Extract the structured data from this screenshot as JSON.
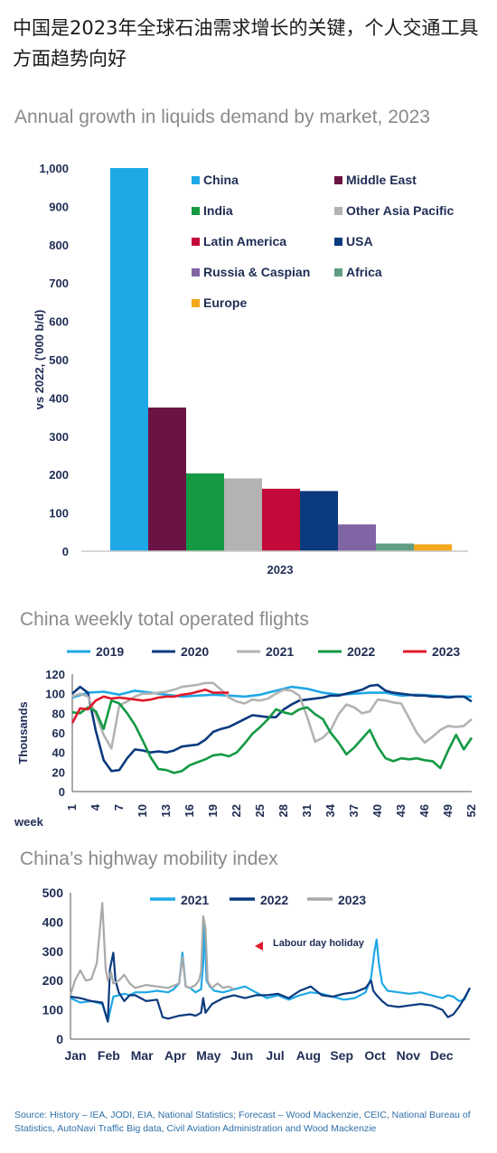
{
  "headline": "中国是2023年全球石油需求增长的关键，个人交通工具方面趋势向好",
  "source": "Source: History – IEA, JODI, EIA, National Statistics; Forecast – Wood Mackenzie,  CEIC, National Bureau of Statistics, AutoNavi Traffic Big data, Civil Aviation Administration and Wood Mackenzie",
  "chart_data": [
    {
      "type": "bar",
      "title": "Annual growth in liquids demand by market, 2023",
      "ylabel": "vs 2022, ('000 b/d)",
      "xlabel": "2023",
      "ylim": [
        0,
        1000
      ],
      "yticks": [
        0,
        100,
        200,
        300,
        400,
        500,
        600,
        700,
        800,
        900,
        1000
      ],
      "legend": "top-right, two columns",
      "series": [
        {
          "name": "China",
          "value": 1000,
          "color": "#1fa8e6"
        },
        {
          "name": "Middle East",
          "value": 375,
          "color": "#6b1444"
        },
        {
          "name": "India",
          "value": 203,
          "color": "#139a43"
        },
        {
          "name": "Other Asia Pacific",
          "value": 190,
          "color": "#b3b3b3"
        },
        {
          "name": "Latin America",
          "value": 163,
          "color": "#c4093a"
        },
        {
          "name": "USA",
          "value": 157,
          "color": "#0b3a7e"
        },
        {
          "name": "Russia & Caspian",
          "value": 70,
          "color": "#7f65a3"
        },
        {
          "name": "Africa",
          "value": 20,
          "color": "#5f9e83"
        },
        {
          "name": "Europe",
          "value": 18,
          "color": "#f5a81c"
        }
      ]
    },
    {
      "type": "line",
      "title": "China weekly total operated flights",
      "ylabel": "Thousands",
      "xlabel": "week",
      "ylim": [
        0,
        120
      ],
      "xlim": [
        1,
        52
      ],
      "yticks": [
        0,
        20,
        40,
        60,
        80,
        100,
        120
      ],
      "xticks": [
        1,
        4,
        7,
        10,
        13,
        16,
        19,
        22,
        25,
        28,
        31,
        34,
        37,
        40,
        43,
        46,
        49,
        52
      ],
      "legend": "top",
      "series": [
        {
          "name": "2019",
          "color": "#1fa8e6",
          "x": [
            1,
            3,
            5,
            7,
            9,
            11,
            13,
            15,
            17,
            19,
            21,
            23,
            25,
            27,
            29,
            31,
            33,
            35,
            37,
            39,
            41,
            43,
            45,
            47,
            49,
            51,
            52
          ],
          "y": [
            96,
            101,
            102,
            99,
            103,
            101,
            99,
            97,
            98,
            99,
            98,
            97,
            99,
            103,
            107,
            105,
            101,
            99,
            100,
            101,
            101,
            98,
            99,
            98,
            97,
            97,
            97
          ]
        },
        {
          "name": "2020",
          "color": "#0b3a7e",
          "x": [
            1,
            2,
            3,
            4,
            5,
            6,
            7,
            8,
            9,
            10,
            11,
            12,
            13,
            14,
            15,
            16,
            17,
            18,
            19,
            20,
            21,
            22,
            23,
            24,
            25,
            26,
            27,
            28,
            29,
            30,
            31,
            32,
            33,
            34,
            35,
            36,
            37,
            38,
            39,
            40,
            41,
            42,
            43,
            44,
            45,
            46,
            47,
            48,
            49,
            50,
            51,
            52
          ],
          "y": [
            100,
            107,
            101,
            62,
            32,
            21,
            22,
            34,
            43,
            42,
            40,
            41,
            40,
            42,
            46,
            47,
            48,
            53,
            61,
            64,
            66,
            70,
            74,
            78,
            77,
            76,
            76,
            84,
            89,
            93,
            94,
            95,
            96,
            98,
            98,
            100,
            102,
            104,
            108,
            109,
            103,
            101,
            100,
            99,
            98,
            98,
            97,
            97,
            96,
            97,
            97,
            92
          ]
        },
        {
          "name": "2021",
          "color": "#b3b3b3",
          "x": [
            1,
            2,
            3,
            4,
            5,
            6,
            7,
            8,
            9,
            10,
            11,
            12,
            13,
            14,
            15,
            16,
            17,
            18,
            19,
            20,
            21,
            22,
            23,
            24,
            25,
            26,
            27,
            28,
            29,
            30,
            31,
            32,
            33,
            34,
            35,
            36,
            37,
            38,
            39,
            40,
            41,
            42,
            43,
            44,
            45,
            46,
            47,
            48,
            49,
            50,
            51,
            52
          ],
          "y": [
            97,
            100,
            97,
            79,
            58,
            44,
            88,
            92,
            97,
            100,
            100,
            101,
            102,
            104,
            107,
            108,
            109,
            111,
            111,
            104,
            96,
            92,
            90,
            94,
            93,
            95,
            100,
            104,
            103,
            98,
            76,
            51,
            55,
            63,
            79,
            89,
            86,
            80,
            82,
            94,
            93,
            91,
            90,
            75,
            60,
            50,
            56,
            63,
            67,
            66,
            67,
            74
          ]
        },
        {
          "name": "2022",
          "color": "#139a43",
          "x": [
            1,
            2,
            3,
            4,
            5,
            6,
            7,
            8,
            9,
            10,
            11,
            12,
            13,
            14,
            15,
            16,
            17,
            18,
            19,
            20,
            21,
            22,
            23,
            24,
            25,
            26,
            27,
            28,
            29,
            30,
            31,
            32,
            33,
            34,
            35,
            36,
            37,
            38,
            39,
            40,
            41,
            42,
            43,
            44,
            45,
            46,
            47,
            48,
            49,
            50,
            51,
            52
          ],
          "y": [
            81,
            80,
            86,
            82,
            64,
            93,
            90,
            80,
            68,
            52,
            35,
            23,
            22,
            19,
            21,
            27,
            30,
            33,
            37,
            38,
            36,
            40,
            49,
            59,
            66,
            74,
            84,
            81,
            79,
            84,
            86,
            79,
            74,
            60,
            50,
            38,
            45,
            54,
            63,
            46,
            34,
            31,
            34,
            33,
            34,
            32,
            31,
            24,
            42,
            58,
            43,
            55
          ]
        },
        {
          "name": "2023",
          "color": "#e0192b",
          "x": [
            1,
            2,
            3,
            4,
            5,
            6,
            7,
            8,
            9,
            10,
            11,
            12,
            13,
            14,
            15,
            16,
            17,
            18,
            19,
            20,
            21
          ],
          "y": [
            70,
            85,
            84,
            93,
            97,
            95,
            96,
            95,
            94,
            93,
            94,
            96,
            97,
            97,
            99,
            100,
            102,
            104,
            101,
            101,
            101
          ]
        }
      ]
    },
    {
      "type": "line",
      "title": "China’s highway mobility index",
      "ylim": [
        0,
        500
      ],
      "yticks": [
        0,
        100,
        200,
        300,
        400,
        500
      ],
      "xticks": [
        "Jan",
        "Feb",
        "Mar",
        "Apr",
        "May",
        "Jun",
        "Jul",
        "Aug",
        "Sep",
        "Oct",
        "Nov",
        "Dec"
      ],
      "x_unit": "day of year",
      "legend": "top",
      "annotation": "Labour day holiday",
      "series": [
        {
          "name": "2021",
          "color": "#1fa8e6",
          "x": [
            1,
            10,
            20,
            30,
            35,
            40,
            45,
            50,
            55,
            60,
            70,
            80,
            90,
            95,
            100,
            103,
            106,
            110,
            115,
            120,
            122,
            123,
            125,
            128,
            132,
            140,
            150,
            160,
            170,
            180,
            190,
            200,
            210,
            220,
            230,
            240,
            250,
            260,
            265,
            270,
            275,
            278,
            280,
            282,
            285,
            290,
            300,
            310,
            320,
            330,
            340,
            345,
            350,
            355,
            360,
            365
          ],
          "y": [
            140,
            125,
            130,
            120,
            60,
            145,
            150,
            155,
            150,
            160,
            160,
            165,
            160,
            170,
            190,
            295,
            180,
            175,
            160,
            170,
            260,
            390,
            200,
            180,
            165,
            160,
            170,
            180,
            160,
            140,
            150,
            135,
            150,
            160,
            155,
            145,
            135,
            140,
            150,
            160,
            210,
            300,
            340,
            260,
            190,
            165,
            160,
            155,
            160,
            150,
            140,
            150,
            145,
            130,
            135,
            175
          ]
        },
        {
          "name": "2022",
          "color": "#0b3a7e",
          "x": [
            1,
            10,
            20,
            30,
            35,
            37,
            40,
            42,
            45,
            50,
            55,
            60,
            70,
            80,
            85,
            90,
            100,
            110,
            115,
            120,
            122,
            124,
            126,
            130,
            140,
            150,
            160,
            170,
            180,
            190,
            200,
            210,
            220,
            230,
            240,
            250,
            260,
            270,
            275,
            277,
            280,
            285,
            290,
            300,
            310,
            320,
            330,
            340,
            345,
            350,
            355,
            360,
            365
          ],
          "y": [
            145,
            140,
            130,
            125,
            60,
            240,
            295,
            200,
            160,
            130,
            150,
            150,
            130,
            135,
            75,
            70,
            80,
            85,
            80,
            90,
            140,
            90,
            100,
            120,
            140,
            150,
            140,
            150,
            150,
            155,
            140,
            165,
            180,
            150,
            145,
            155,
            160,
            175,
            200,
            165,
            150,
            130,
            115,
            110,
            115,
            120,
            115,
            100,
            75,
            85,
            110,
            140,
            175
          ]
        },
        {
          "name": "2023",
          "color": "#a9a9a9",
          "x": [
            1,
            5,
            10,
            15,
            20,
            25,
            30,
            33,
            35,
            38,
            40,
            45,
            50,
            55,
            60,
            70,
            80,
            90,
            100,
            103,
            106,
            110,
            115,
            118,
            120,
            122,
            124,
            126,
            128,
            130,
            135,
            140,
            145,
            150
          ],
          "y": [
            150,
            200,
            235,
            200,
            205,
            260,
            465,
            240,
            200,
            230,
            190,
            200,
            220,
            190,
            175,
            185,
            180,
            175,
            190,
            280,
            180,
            175,
            185,
            200,
            230,
            420,
            380,
            200,
            185,
            175,
            190,
            175,
            180,
            170
          ]
        }
      ]
    }
  ]
}
